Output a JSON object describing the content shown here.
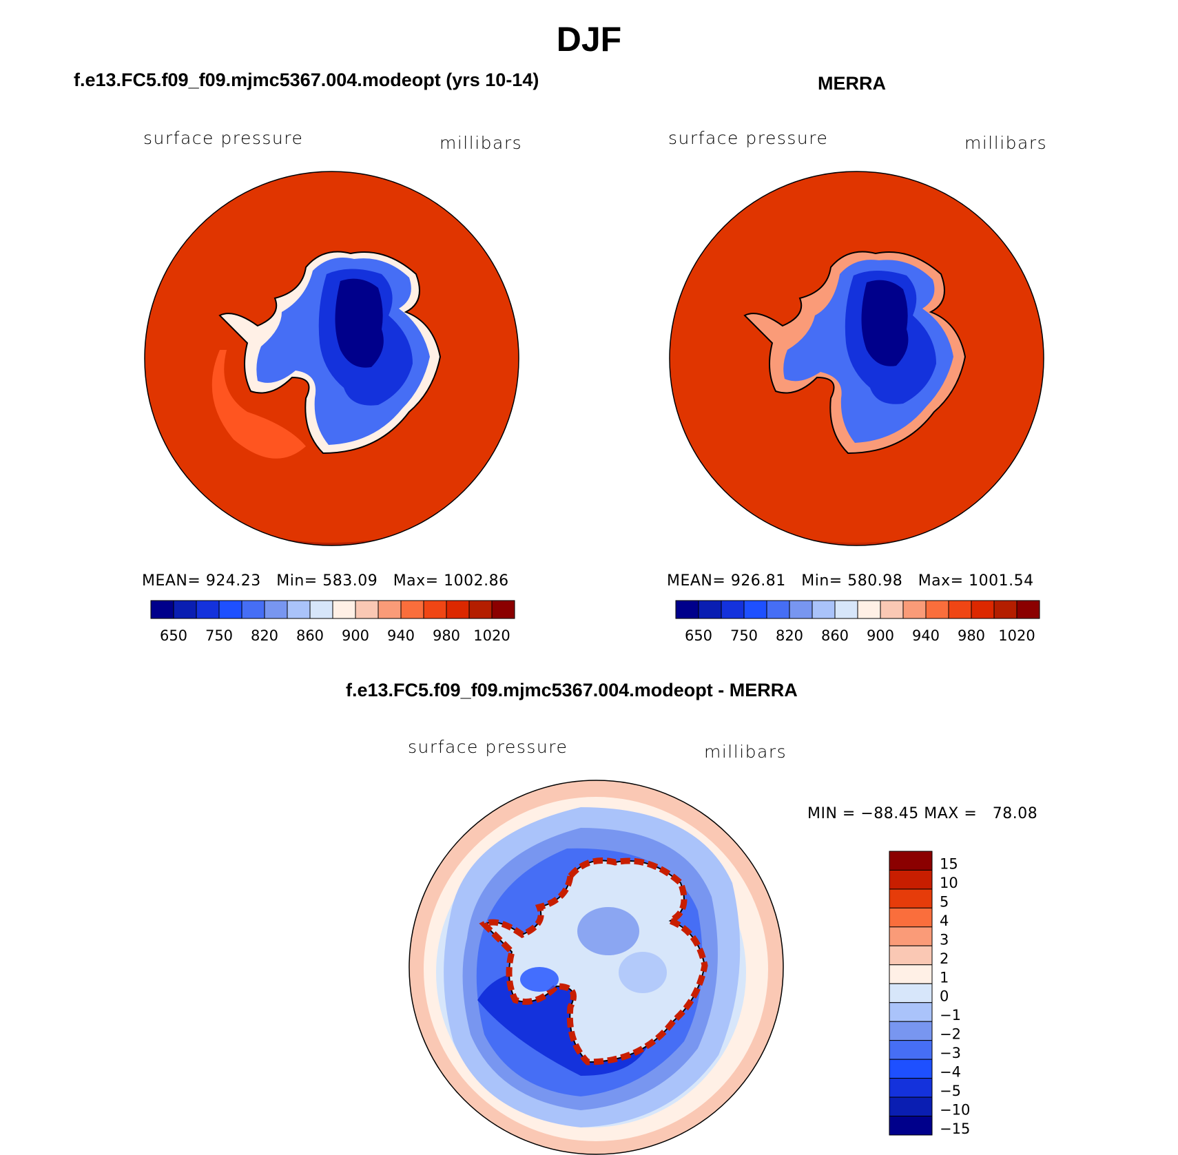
{
  "figure": {
    "title": "DJF",
    "colors": {
      "continent_outline": "#000000",
      "ocean_model": "#e03500",
      "ocean_merra": "#e03500"
    }
  },
  "panels": [
    {
      "id": "model",
      "title": "f.e13.FC5.f09_f09.mjmc5367.004.modeopt (yrs 10-14)",
      "left_label": "surface pressure",
      "right_label": "millibars",
      "stats": "MEAN= 924.23   Min= 583.09   Max= 1002.86"
    },
    {
      "id": "merra",
      "title": "MERRA",
      "left_label": "surface pressure",
      "right_label": "millibars",
      "stats": "MEAN= 926.81   Min= 580.98   Max= 1001.54"
    },
    {
      "id": "diff",
      "title": "f.e13.FC5.f09_f09.mjmc5367.004.modeopt - MERRA",
      "left_label": "surface pressure",
      "right_label": "millibars",
      "stats": "MIN = −88.45 MAX =   78.08"
    }
  ],
  "colorbar_abs": {
    "colors": [
      "#00008b",
      "#0a1eb2",
      "#1432dc",
      "#1e50ff",
      "#466ef5",
      "#7896f0",
      "#aac3fa",
      "#d7e6fa",
      "#fff0e6",
      "#fac8b4",
      "#fa9b78",
      "#fa6e3c",
      "#f04614",
      "#dc2800",
      "#b41e00",
      "#8b0000"
    ],
    "labels": [
      "650",
      "750",
      "820",
      "860",
      "900",
      "940",
      "980",
      "1020"
    ]
  },
  "colorbar_diff": {
    "colors": [
      "#8b0000",
      "#c81e00",
      "#e63c0a",
      "#fa6e3c",
      "#fa9b78",
      "#fac8b4",
      "#fff0e6",
      "#d7e6fa",
      "#aac3fa",
      "#7896f0",
      "#466ef5",
      "#1e50ff",
      "#1432dc",
      "#0a1eb2",
      "#00008b"
    ],
    "labels": [
      "15",
      "10",
      "5",
      "4",
      "3",
      "2",
      "1",
      "0",
      "−1",
      "−2",
      "−3",
      "−4",
      "−5",
      "−10",
      "−15"
    ]
  }
}
